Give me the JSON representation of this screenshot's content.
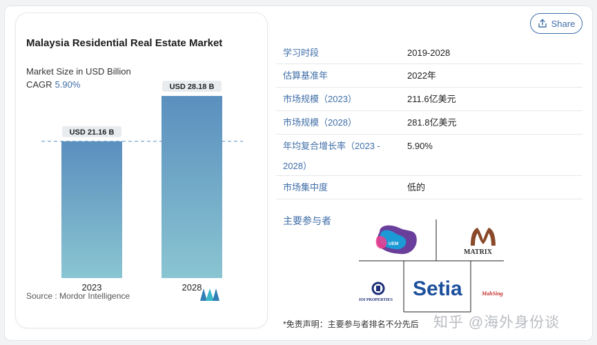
{
  "share": {
    "label": "Share",
    "icon": "share-icon"
  },
  "chart": {
    "title": "Malaysia Residential Real Estate Market",
    "subtitle": "Market Size in USD Billion",
    "cagr_label": "CAGR",
    "cagr_value": "5.90%",
    "source": "Source :  Mordor Intelligence"
  },
  "chart_data": {
    "type": "bar",
    "categories": [
      "2023",
      "2028"
    ],
    "values": [
      21.16,
      28.18
    ],
    "data_labels": [
      "USD 21.16 B",
      "USD 28.18 B"
    ],
    "title": "Malaysia Residential Real Estate Market",
    "ylabel": "Market Size in USD Billion",
    "ylim": [
      0,
      30
    ],
    "grid": false,
    "reference_line": 21.16,
    "colors": [
      "#5b8fbe",
      "#8ac5d2"
    ]
  },
  "table": {
    "rows": [
      {
        "label": "学习时段",
        "value": "2019-2028"
      },
      {
        "label": "估算基准年",
        "value": "2022年"
      },
      {
        "label": "市场规模（2023）",
        "value": "211.6亿美元"
      },
      {
        "label": "市场规模（2028）",
        "value": "281.8亿美元"
      },
      {
        "label": "年均复合增长率（2023 - 2028）",
        "value": "5.90%"
      },
      {
        "label": "市场集中度",
        "value": "低的"
      }
    ]
  },
  "players": {
    "title": "主要参与者",
    "logos": [
      {
        "name": "UEM Sunrise",
        "icon": "uem-sunrise-logo"
      },
      {
        "name": "MATRIX",
        "icon": "matrix-logo"
      },
      {
        "name": "IOI PROPERTIES",
        "icon": "ioi-properties-logo"
      },
      {
        "name": "Setia",
        "icon": "setia-logo"
      },
      {
        "name": "MahSing",
        "icon": "mahsing-logo"
      }
    ]
  },
  "disclaimer": "*免责声明：主要参与者排名不分先后",
  "watermark": "知乎 @海外身份谈",
  "colors": {
    "accent": "#3f6ea8",
    "bar_2023": "#5b8fbe",
    "bar_2028": "#8ac5d2"
  }
}
